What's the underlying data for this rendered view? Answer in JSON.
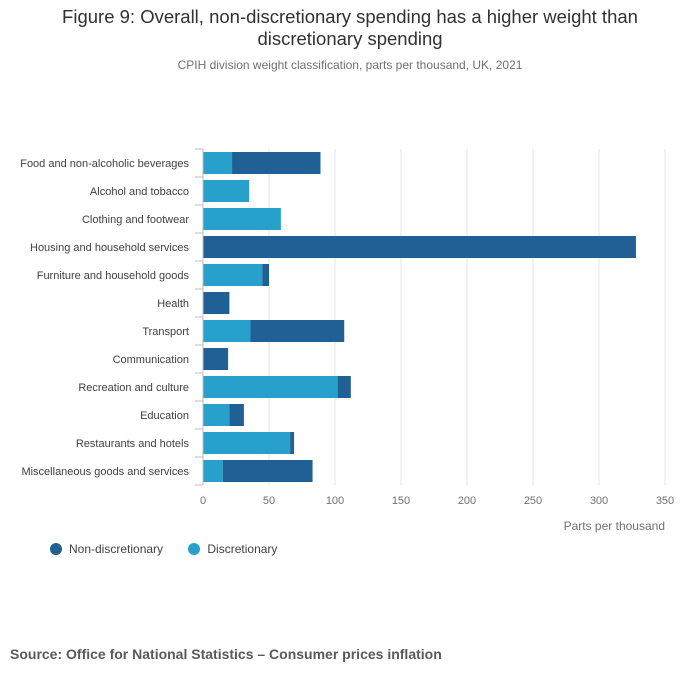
{
  "title_line1": "Figure 9: Overall, non-discretionary spending has a higher weight than",
  "title_line2": "discretionary spending",
  "subtitle": "CPIH division weight classification, parts per thousand, UK, 2021",
  "source": "Source: Office for National Statistics – Consumer prices inflation",
  "colors": {
    "non_discretionary": "#206095",
    "discretionary": "#27a0cc",
    "grid": "#e6e6e6",
    "axis": "#bebebe"
  },
  "chart_data": {
    "type": "bar",
    "orientation": "horizontal",
    "stacked": true,
    "categories": [
      "Food and non-alcoholic beverages",
      "Alcohol and tobacco",
      "Clothing and footwear",
      "Housing and household services",
      "Furniture and household goods",
      "Health",
      "Transport",
      "Communication",
      "Recreation and culture",
      "Education",
      "Restaurants and hotels",
      "Miscellaneous goods and services"
    ],
    "series": [
      {
        "name": "Discretionary",
        "values": [
          22,
          35,
          59,
          0,
          45,
          0,
          36,
          0,
          102,
          20,
          66,
          15
        ]
      },
      {
        "name": "Non-discretionary",
        "values": [
          67,
          0,
          0,
          328,
          5,
          20,
          71,
          19,
          10,
          11,
          3,
          68
        ]
      }
    ],
    "xlabel": "Parts per thousand",
    "xlim": [
      0,
      350
    ],
    "xticks": [
      0,
      50,
      100,
      150,
      200,
      250,
      300,
      350
    ],
    "grid": true,
    "legend_position": "bottom-left"
  }
}
